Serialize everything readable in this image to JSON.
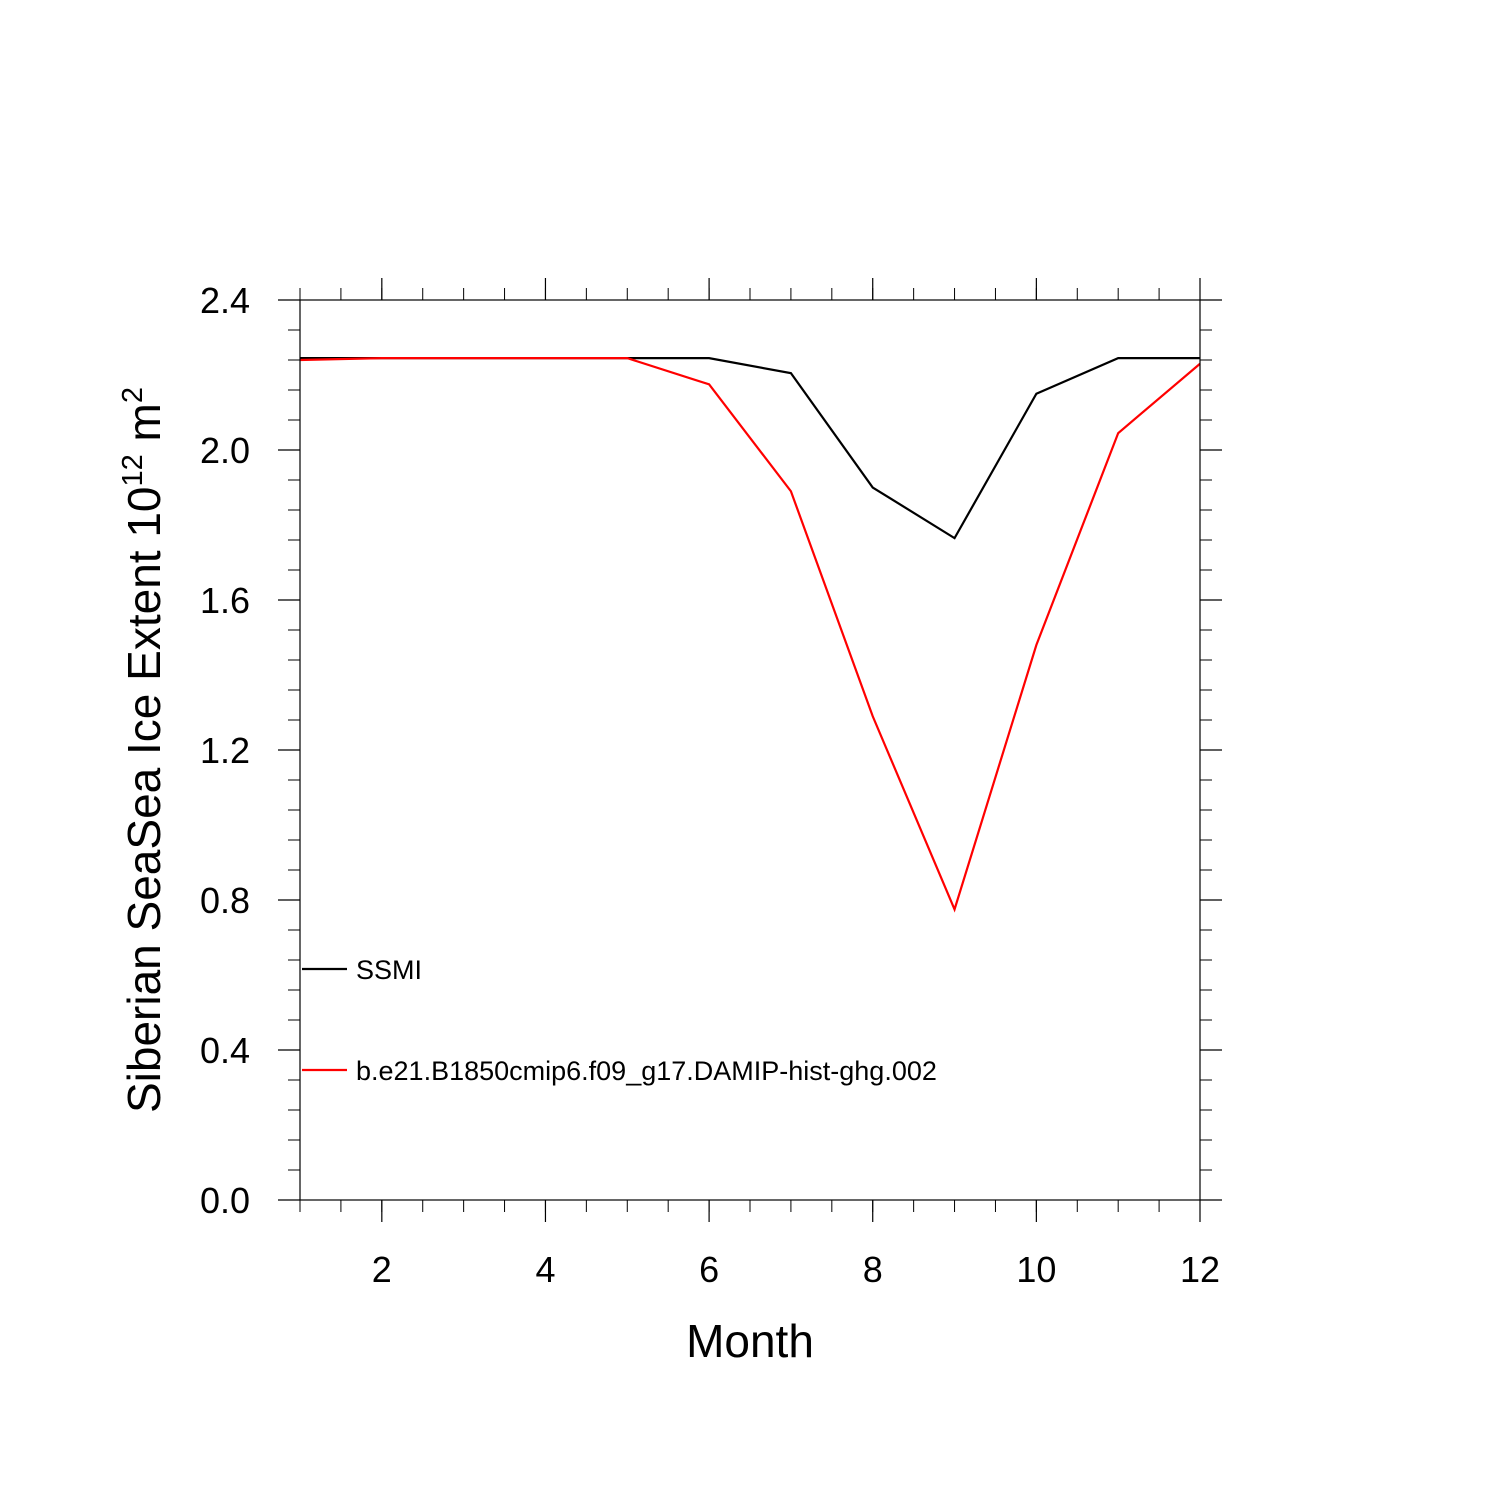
{
  "chart_data": {
    "type": "line",
    "xlabel": "Month",
    "ylabel": {
      "prefix": "Siberian SeaSea Ice Extent 10",
      "exp1": "12",
      "unit": " m",
      "exp2": "2"
    },
    "xlim": [
      1,
      12
    ],
    "ylim": [
      0.0,
      2.4
    ],
    "x_ticks": [
      2,
      4,
      6,
      8,
      10,
      12
    ],
    "x_tick_labels": [
      "2",
      "4",
      "6",
      "8",
      "10",
      "12"
    ],
    "y_ticks": [
      0.0,
      0.4,
      0.8,
      1.2,
      1.6,
      2.0,
      2.4
    ],
    "y_tick_labels": [
      "0.0",
      "0.4",
      "0.8",
      "1.2",
      "1.6",
      "2.0",
      "2.4"
    ],
    "x": [
      1,
      2,
      3,
      4,
      5,
      6,
      7,
      8,
      9,
      10,
      11,
      12
    ],
    "series": [
      {
        "name": "SSMI",
        "color": "#000000",
        "values": [
          2.245,
          2.245,
          2.245,
          2.245,
          2.245,
          2.245,
          2.205,
          1.9,
          1.765,
          2.15,
          2.245,
          2.245
        ]
      },
      {
        "name": "b.e21.B1850cmip6.f09_g17.DAMIP-hist-ghg.002",
        "color": "#ff0000",
        "values": [
          2.24,
          2.245,
          2.245,
          2.245,
          2.245,
          2.175,
          1.89,
          1.29,
          0.775,
          1.48,
          2.045,
          2.23
        ]
      }
    ],
    "legend": "inside-bottom-left",
    "grid": false
  }
}
